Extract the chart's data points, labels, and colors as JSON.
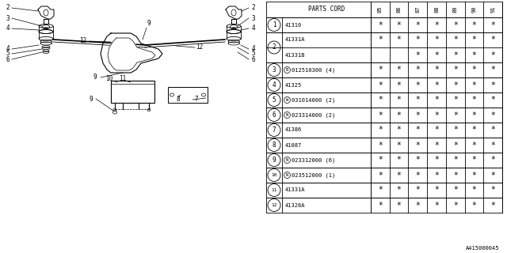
{
  "footer": "A415000045",
  "table": {
    "header_label": "PARTS CORD",
    "columns": [
      "85",
      "86",
      "87",
      "88",
      "89",
      "90",
      "91"
    ],
    "rows": [
      {
        "num": "1",
        "prefix": "",
        "code": "41310",
        "marks": [
          true,
          true,
          true,
          true,
          true,
          true,
          true
        ]
      },
      {
        "num": "2",
        "prefix": "",
        "code": "41331A",
        "marks": [
          true,
          true,
          true,
          true,
          true,
          true,
          true
        ]
      },
      {
        "num": "2",
        "prefix": "",
        "code": "41331B",
        "marks": [
          false,
          false,
          true,
          true,
          true,
          true,
          true
        ]
      },
      {
        "num": "3",
        "prefix": "B",
        "code": "012510300 (4)",
        "marks": [
          true,
          true,
          true,
          true,
          true,
          true,
          true
        ]
      },
      {
        "num": "4",
        "prefix": "",
        "code": "41325",
        "marks": [
          true,
          true,
          true,
          true,
          true,
          true,
          true
        ]
      },
      {
        "num": "5",
        "prefix": "W",
        "code": "031014000 (2)",
        "marks": [
          true,
          true,
          true,
          true,
          true,
          true,
          true
        ]
      },
      {
        "num": "6",
        "prefix": "N",
        "code": "023314000 (2)",
        "marks": [
          true,
          true,
          true,
          true,
          true,
          true,
          true
        ]
      },
      {
        "num": "7",
        "prefix": "",
        "code": "41386",
        "marks": [
          true,
          true,
          true,
          true,
          true,
          true,
          true
        ]
      },
      {
        "num": "8",
        "prefix": "",
        "code": "41087",
        "marks": [
          true,
          true,
          true,
          true,
          true,
          true,
          true
        ]
      },
      {
        "num": "9",
        "prefix": "N",
        "code": "023312000 (6)",
        "marks": [
          true,
          true,
          true,
          true,
          true,
          true,
          true
        ]
      },
      {
        "num": "10",
        "prefix": "N",
        "code": "023512000 (1)",
        "marks": [
          true,
          true,
          true,
          true,
          true,
          true,
          true
        ]
      },
      {
        "num": "11",
        "prefix": "",
        "code": "41331A",
        "marks": [
          true,
          true,
          true,
          true,
          true,
          true,
          true
        ]
      },
      {
        "num": "12",
        "prefix": "",
        "code": "41326A",
        "marks": [
          true,
          true,
          true,
          true,
          true,
          true,
          true
        ]
      }
    ]
  },
  "bg_color": "#ffffff"
}
